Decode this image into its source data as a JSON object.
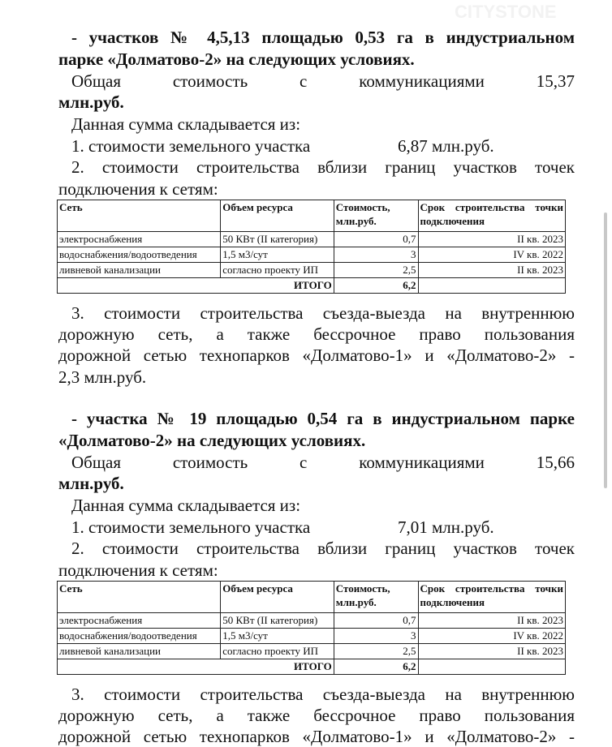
{
  "watermark": "CITYSTONE",
  "section1": {
    "heading_line1": "- участков № 4,5,13 площадью 0,53 га в индустриальном",
    "heading_line2": "парке «Долматово-2» на следующих условиях.",
    "total_line1": "Общая стоимость с коммуникациями 15,37",
    "total_line2": "млн.руб.",
    "composed": "Данная сумма складывается из:",
    "item1": "1. стоимости земельного участка",
    "item1_value": "6,87 млн.руб.",
    "item2_line1": "2. стоимости строительства вблизи границ участков точек",
    "item2_line2": "подключения к сетям:",
    "item3_line1": "3. стоимости строительства съезда-выезда на внутреннюю",
    "item3_line2": "дорожную сеть, а также бессрочное право пользования",
    "item3_line3": "дорожной сетью технопарков «Долматово-1» и «Долматово-2» -",
    "item3_line4": "2,3 млн.руб."
  },
  "section2": {
    "heading_line1": "- участка № 19 площадью 0,54 га в индустриальном парке",
    "heading_line2": "«Долматово-2» на следующих условиях.",
    "total_line1": "Общая стоимость с коммуникациями 15,66",
    "total_line2": "млн.руб.",
    "composed": "Данная сумма складывается из:",
    "item1": "1. стоимости земельного участка",
    "item1_value": "7,01 млн.руб.",
    "item2_line1": "2. стоимости строительства вблизи границ участков точек",
    "item2_line2": "подключения к сетям:",
    "item3_line1": "3. стоимости строительства съезда-выезда на внутреннюю",
    "item3_line2": "дорожную сеть, а также бессрочное право пользования",
    "item3_line3": "дорожной сетью технопарков «Долматово-1» и «Долматово-2» -"
  },
  "table": {
    "headers": [
      "Сеть",
      "Объем ресурса",
      "Стоимость, млн.руб.",
      "Срок строительства точки подключения"
    ],
    "rows": [
      [
        "электроснабжения",
        "50 КВт (II категория)",
        "0,7",
        "II кв. 2023"
      ],
      [
        "водоснабжения/водоотведения",
        "1,5 м3/сут",
        "3",
        "IV кв. 2022"
      ],
      [
        "ливневой канализации",
        "согласно проекту ИП",
        "2,5",
        "II кв. 2023"
      ]
    ],
    "total_label": "ИТОГО",
    "total_value": "6,2"
  }
}
